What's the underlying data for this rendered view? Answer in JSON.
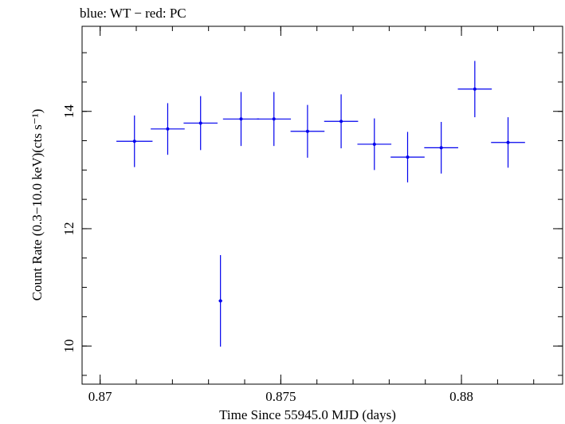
{
  "chart_data": {
    "type": "scatter",
    "title": "blue: WT − red: PC",
    "xlabel": "Time Since 55945.0 MJD (days)",
    "ylabel": "Count Rate (0.3−10.0 keV)(cts s⁻¹)",
    "xlim": [
      0.8695,
      0.8828
    ],
    "ylim": [
      9.35,
      15.45
    ],
    "x_ticks": [
      0.87,
      0.875,
      0.88
    ],
    "x_tick_labels": [
      "0.87",
      "0.875",
      "0.88"
    ],
    "y_ticks": [
      10,
      12,
      14
    ],
    "y_tick_labels": [
      "10",
      "12",
      "14"
    ],
    "grid": false,
    "series": [
      {
        "color": "#0000ee",
        "points": [
          {
            "x": 0.87095,
            "y": 13.49,
            "xerr": 0.0005,
            "yerr": 0.44
          },
          {
            "x": 0.87187,
            "y": 13.7,
            "xerr": 0.00047,
            "yerr": 0.44
          },
          {
            "x": 0.87278,
            "y": 13.8,
            "xerr": 0.00047,
            "yerr": 0.46
          },
          {
            "x": 0.87333,
            "y": 10.77,
            "xerr": 5e-05,
            "yerr": 0.78
          },
          {
            "x": 0.8739,
            "y": 13.87,
            "xerr": 0.0005,
            "yerr": 0.46
          },
          {
            "x": 0.87481,
            "y": 13.87,
            "xerr": 0.00047,
            "yerr": 0.46
          },
          {
            "x": 0.87574,
            "y": 13.66,
            "xerr": 0.00047,
            "yerr": 0.45
          },
          {
            "x": 0.87667,
            "y": 13.83,
            "xerr": 0.00047,
            "yerr": 0.46
          },
          {
            "x": 0.87759,
            "y": 13.44,
            "xerr": 0.00047,
            "yerr": 0.44
          },
          {
            "x": 0.87851,
            "y": 13.22,
            "xerr": 0.00047,
            "yerr": 0.43
          },
          {
            "x": 0.87944,
            "y": 13.38,
            "xerr": 0.00047,
            "yerr": 0.44
          },
          {
            "x": 0.88037,
            "y": 14.38,
            "xerr": 0.00047,
            "yerr": 0.48
          },
          {
            "x": 0.88129,
            "y": 13.47,
            "xerr": 0.00047,
            "yerr": 0.43
          }
        ]
      }
    ]
  }
}
